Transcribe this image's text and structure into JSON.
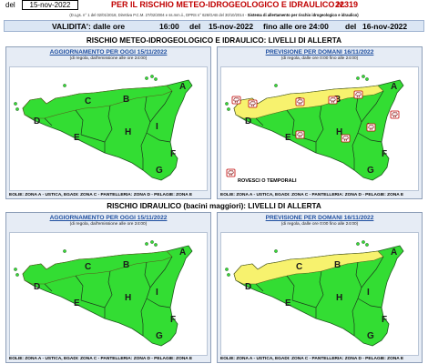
{
  "header": {
    "del_label": "del",
    "date": "15-nov-2022",
    "title": "PER IL RISCHIO METEO-IDROGEOLOGICO E IDRAULICO N.",
    "number": "22319",
    "references": "(D.Lgs. n° 1 del 02/01/2018, Direttiva P.C.M. 27/02/2004 e ss.mm.ii., DPRS n° 626/GAB del 30/10/2014 -",
    "references_bold": "Sistema di allertamento per rischio idrogeologico e idraulico)"
  },
  "validity": {
    "label": "VALIDITA': dalle ore",
    "from_time": "16:00",
    "del_word": "del",
    "from_date": "15-nov-2022",
    "until_label": "fino alle ore 24:00",
    "del_word2": "del",
    "to_date": "16-nov-2022"
  },
  "sections": [
    {
      "title": "RISCHIO METEO-IDROGEOLOGICO E IDRAULICO: LIVELLI DI ALLERTA",
      "panels": [
        {
          "title": "AGGIORNAMENTO PER OGGI 15/11/2022",
          "subtitle": "(di regola, dall'emissione alle ore 24:00)",
          "legend": "EOLIE: ZONA A - USTICA, EGADI: ZONA C - PANTELLERIA: ZONA D - PELAGIE: ZONA E",
          "north_color": "#33dd33",
          "storm_icons": false
        },
        {
          "title": "PREVISIONE PER DOMANI 16/11/2022",
          "subtitle": "(di regola, dalle ore 0:00 fino alle 24:00)",
          "legend": "EOLIE: ZONA A - USTICA, EGADI: ZONA C - PANTELLERIA: ZONA D - PELAGIE: ZONA E",
          "north_color": "#f7f26e",
          "storm_icons": true,
          "storm_legend": "ROVESCI O TEMPORALI"
        }
      ]
    },
    {
      "title": "RISCHIO IDRAULICO (bacini maggiori): LIVELLI DI ALLERTA",
      "panels": [
        {
          "title": "AGGIORNAMENTO PER OGGI 15/11/2022",
          "subtitle": "(di regola, dall'emissione alle ore 24:00)",
          "legend": "EOLIE: ZONA A - USTICA, EGADI: ZONA C - PANTELLERIA: ZONA D - PELAGIE: ZONA E",
          "north_color": "#33dd33",
          "storm_icons": false
        },
        {
          "title": "PREVISIONE PER DOMANI 16/11/2022",
          "subtitle": "(di regola, dalle ore 0:00 fino alle 24:00)",
          "legend": "EOLIE: ZONA A - USTICA, EGADI: ZONA C - PANTELLERIA: ZONA D - PELAGIE: ZONA E",
          "north_color": "#f7f26e",
          "storm_icons": false
        }
      ]
    }
  ],
  "zones": {
    "a": "A",
    "b": "B",
    "c": "C",
    "d": "D",
    "e": "E",
    "f": "F",
    "g": "G",
    "h": "H",
    "i": "I"
  },
  "colors": {
    "green": "#33dd33",
    "yellow": "#f7f26e",
    "title_red": "#c00000",
    "panel_title_blue": "#1f4fa0"
  }
}
